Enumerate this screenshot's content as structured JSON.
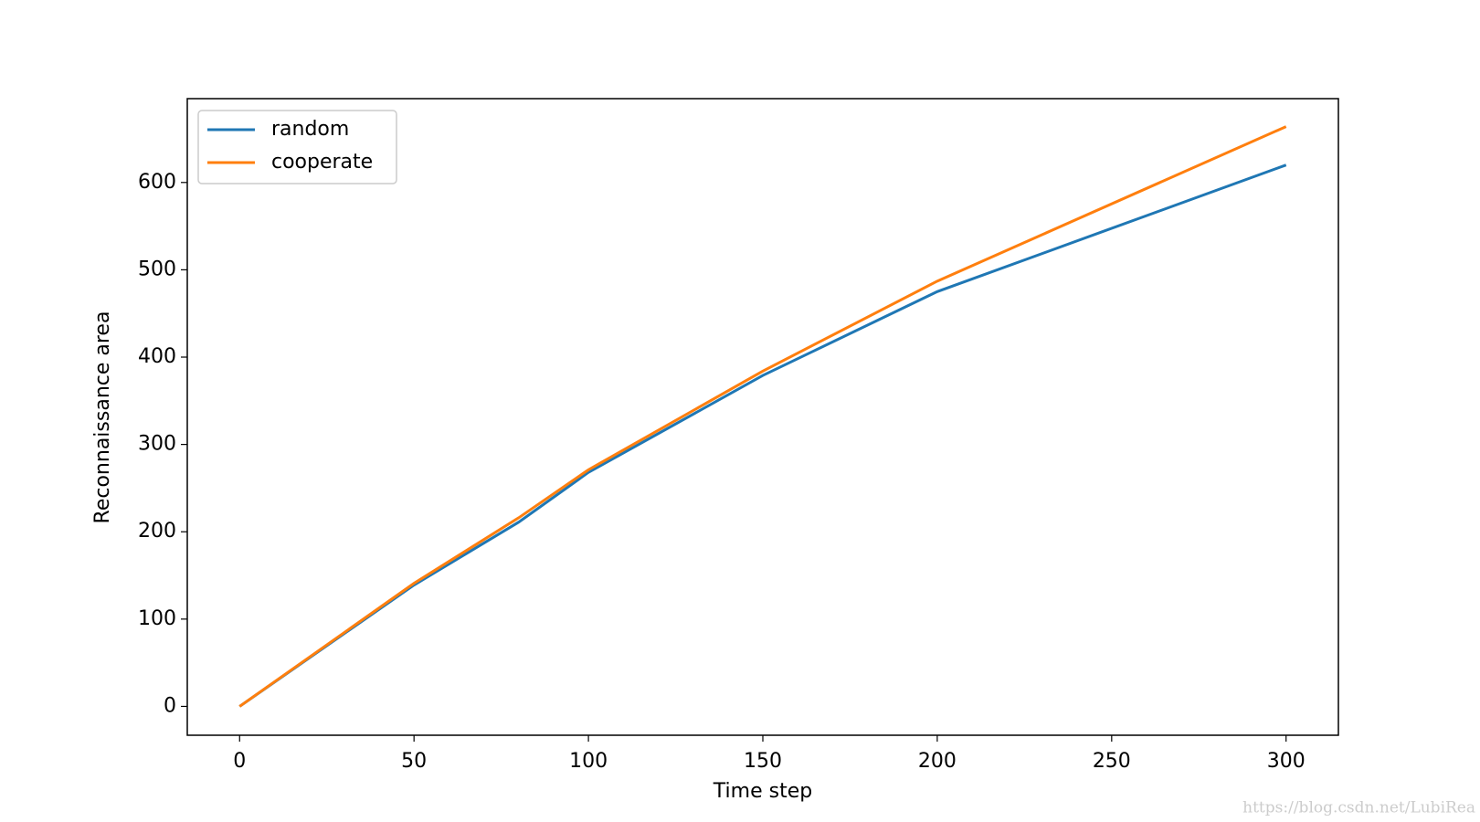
{
  "chart_data": {
    "type": "line",
    "x_label": "Time step",
    "y_label": "Reconnaissance area",
    "x": [
      0,
      50,
      80,
      100,
      150,
      200,
      300
    ],
    "series": [
      {
        "name": "random",
        "color": "#1f77b4",
        "values": [
          0,
          139,
          211,
          268,
          379,
          475,
          620
        ]
      },
      {
        "name": "cooperate",
        "color": "#ff7f0e",
        "values": [
          0,
          141,
          216,
          271,
          384,
          487,
          664
        ]
      }
    ],
    "xlim": [
      -15,
      315
    ],
    "xticks": [
      0,
      50,
      100,
      150,
      200,
      250,
      300
    ],
    "ylim": [
      -33,
      696
    ],
    "yticks": [
      0,
      100,
      200,
      300,
      400,
      500,
      600
    ],
    "legend": "upper left",
    "watermark": "https://blog.csdn.net/LubiRea"
  }
}
